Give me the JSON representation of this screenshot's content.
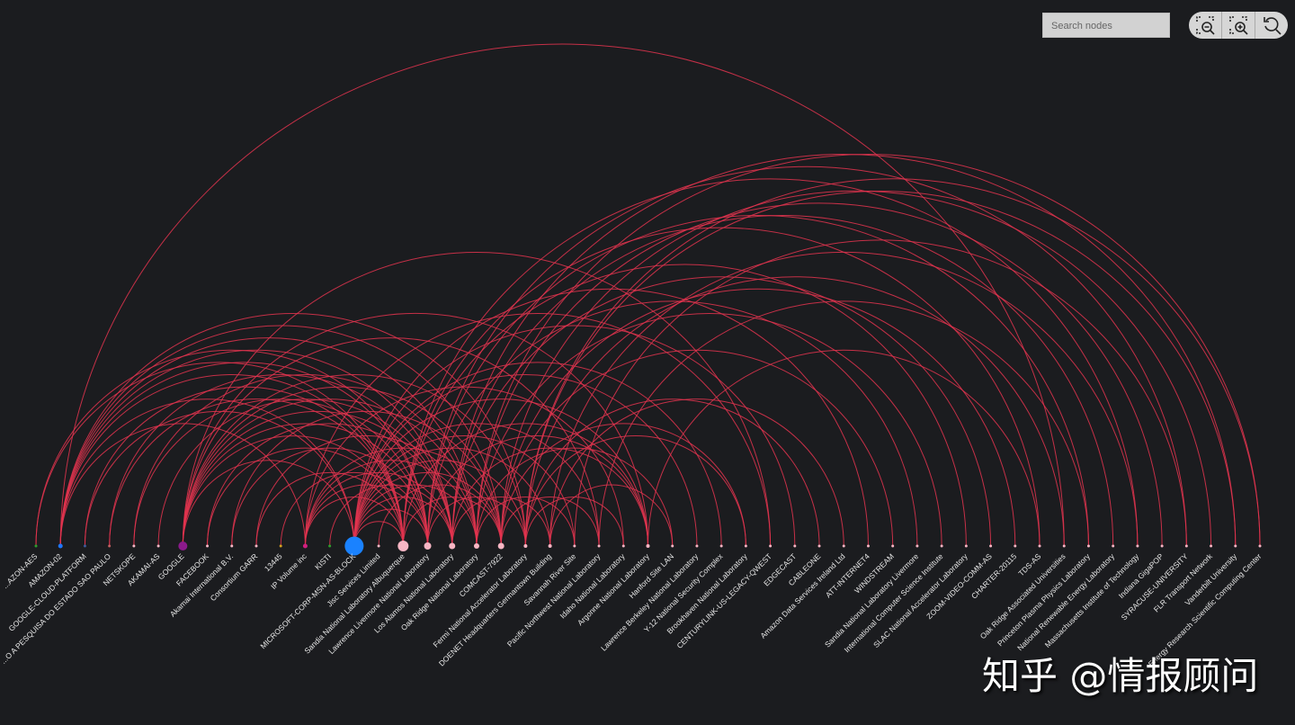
{
  "search_placeholder": "Search nodes",
  "watermark": "知乎 @情报顾问",
  "link_color": "#e3344f",
  "nodes": [
    {
      "label": "...AZON-AES",
      "size": 1.5,
      "color": "#2ca02c"
    },
    {
      "label": "AMAZON-02",
      "size": 2.5,
      "color": "#1f77ff"
    },
    {
      "label": "GOOGLE-CLOUD-PLATFORM",
      "size": 1.5,
      "color": "#3d5a99"
    },
    {
      "label": "...O A PESQUISA DO ESTADO SAO PAULO",
      "size": 1.5,
      "color": "#c06060"
    },
    {
      "label": "NETSKOPE",
      "size": 1.5,
      "color": "#f5b8c6"
    },
    {
      "label": "AKAMAI-AS",
      "size": 1.5,
      "color": "#f5b8c6"
    },
    {
      "label": "GOOGLE",
      "size": 5,
      "color": "#8b1a8b"
    },
    {
      "label": "FACEBOOK",
      "size": 1.5,
      "color": "#f5b8c6"
    },
    {
      "label": "Akamai International B.V.",
      "size": 1.5,
      "color": "#f5b8c6"
    },
    {
      "label": "Consortium GARR",
      "size": 1.5,
      "color": "#f5b8c6"
    },
    {
      "label": "13445",
      "size": 1.5,
      "color": "#d4a020"
    },
    {
      "label": "IP Volume inc",
      "size": 2.5,
      "color": "#d01f7f"
    },
    {
      "label": "KISTI",
      "size": 1.5,
      "color": "#2ca02c"
    },
    {
      "label": "MICROSOFT-CORP-MSN-AS-BLOCK",
      "size": 10.5,
      "color": "#1a82ff"
    },
    {
      "label": "Jisc Services Limited",
      "size": 1.5,
      "color": "#f5b8c6"
    },
    {
      "label": "Sandia National Laboratory Albuquerque",
      "size": 6,
      "color": "#f7b6c4"
    },
    {
      "label": "Lawrence Livermore National Laboratory",
      "size": 4,
      "color": "#f7b6c4"
    },
    {
      "label": "Los Alamos National Laboratory",
      "size": 3.5,
      "color": "#f7b6c4"
    },
    {
      "label": "Oak Ridge National Laboratory",
      "size": 3,
      "color": "#f7b6c4"
    },
    {
      "label": "COMCAST-7922",
      "size": 3.5,
      "color": "#f7b6c4"
    },
    {
      "label": "Fermi National Accelerator Laboratory",
      "size": 2,
      "color": "#f7b6c4"
    },
    {
      "label": "DOENET Headquarters Germantown Building",
      "size": 2,
      "color": "#f7b6c4"
    },
    {
      "label": "Savannah River Site",
      "size": 1.5,
      "color": "#f7b6c4"
    },
    {
      "label": "Pacific Northwest National Laboratory",
      "size": 1.5,
      "color": "#f7b6c4"
    },
    {
      "label": "Idaho National Laboratory",
      "size": 1.5,
      "color": "#f7b6c4"
    },
    {
      "label": "Argonne National Laboratory",
      "size": 2,
      "color": "#f7b6c4"
    },
    {
      "label": "Hanford Site LAN",
      "size": 1.5,
      "color": "#f7b6c4"
    },
    {
      "label": "Lawrence Berkeley National Laboratory",
      "size": 1.5,
      "color": "#f7b6c4"
    },
    {
      "label": "Y-12 National Security Complex",
      "size": 1.5,
      "color": "#f7b6c4"
    },
    {
      "label": "Brookhaven National Laboratory",
      "size": 1.5,
      "color": "#f7b6c4"
    },
    {
      "label": "CENTURYLINK-US-LEGACY-QWEST",
      "size": 1.5,
      "color": "#f7b6c4"
    },
    {
      "label": "EDGECAST",
      "size": 1.5,
      "color": "#f7b6c4"
    },
    {
      "label": "CABLEONE",
      "size": 1.5,
      "color": "#f7b6c4"
    },
    {
      "label": "Amazon Data Services Ireland Ltd",
      "size": 1.5,
      "color": "#f7b6c4"
    },
    {
      "label": "ATT-INTERNET4",
      "size": 1.5,
      "color": "#f7b6c4"
    },
    {
      "label": "WINDSTREAM",
      "size": 1.5,
      "color": "#f7b6c4"
    },
    {
      "label": "Sandia National Laboratory Livermore",
      "size": 1.5,
      "color": "#f7b6c4"
    },
    {
      "label": "International Computer Science Institute",
      "size": 1.5,
      "color": "#f7b6c4"
    },
    {
      "label": "SLAC National Accelerator Laboratory",
      "size": 1.5,
      "color": "#f7b6c4"
    },
    {
      "label": "ZOOM-VIDEO-COMM-AS",
      "size": 1.5,
      "color": "#f7b6c4"
    },
    {
      "label": "CHARTER-20115",
      "size": 1.5,
      "color": "#f7b6c4"
    },
    {
      "label": "TDS-AS",
      "size": 1.5,
      "color": "#f7b6c4"
    },
    {
      "label": "Oak Ridge Associated Universities",
      "size": 1.5,
      "color": "#f7b6c4"
    },
    {
      "label": "Princeton Plasma Physics Laboratory",
      "size": 1.5,
      "color": "#f7b6c4"
    },
    {
      "label": "National Renewable Energy Laboratory",
      "size": 1.5,
      "color": "#f7b6c4"
    },
    {
      "label": "Massachusetts Institute of Technology",
      "size": 1.5,
      "color": "#f7b6c4"
    },
    {
      "label": "Indiana GigaPOP",
      "size": 1.5,
      "color": "#f7b6c4"
    },
    {
      "label": "SYRACUSE-UNIVERSITY",
      "size": 1.5,
      "color": "#f7b6c4"
    },
    {
      "label": "FLR Transport Network",
      "size": 1.5,
      "color": "#f7b6c4"
    },
    {
      "label": "Vanderbilt University",
      "size": 1.5,
      "color": "#f7b6c4"
    },
    {
      "label": "Energy Research Scientific Computing Center",
      "size": 1.5,
      "color": "#f7b6c4"
    }
  ],
  "links": [
    [
      1,
      42
    ],
    [
      1,
      15
    ],
    [
      1,
      16
    ],
    [
      1,
      17
    ],
    [
      1,
      18
    ],
    [
      1,
      19
    ],
    [
      1,
      20
    ],
    [
      1,
      13
    ],
    [
      1,
      11
    ],
    [
      0,
      15
    ],
    [
      0,
      16
    ],
    [
      2,
      13
    ],
    [
      2,
      15
    ],
    [
      3,
      15
    ],
    [
      3,
      17
    ],
    [
      4,
      16
    ],
    [
      4,
      18
    ],
    [
      5,
      17
    ],
    [
      6,
      13
    ],
    [
      6,
      15
    ],
    [
      6,
      16
    ],
    [
      6,
      17
    ],
    [
      6,
      18
    ],
    [
      6,
      19
    ],
    [
      6,
      20
    ],
    [
      6,
      23
    ],
    [
      6,
      25
    ],
    [
      6,
      30
    ],
    [
      7,
      15
    ],
    [
      7,
      17
    ],
    [
      8,
      16
    ],
    [
      8,
      19
    ],
    [
      9,
      15
    ],
    [
      9,
      18
    ],
    [
      10,
      16
    ],
    [
      11,
      15
    ],
    [
      11,
      16
    ],
    [
      11,
      17
    ],
    [
      11,
      18
    ],
    [
      11,
      19
    ],
    [
      11,
      24
    ],
    [
      11,
      30
    ],
    [
      12,
      17
    ],
    [
      13,
      15
    ],
    [
      13,
      16
    ],
    [
      13,
      17
    ],
    [
      13,
      18
    ],
    [
      13,
      19
    ],
    [
      13,
      20
    ],
    [
      13,
      21
    ],
    [
      13,
      22
    ],
    [
      13,
      23
    ],
    [
      13,
      25
    ],
    [
      13,
      27
    ],
    [
      13,
      28
    ],
    [
      13,
      31
    ],
    [
      13,
      34
    ],
    [
      14,
      19
    ],
    [
      15,
      19
    ],
    [
      15,
      38
    ],
    [
      15,
      41
    ],
    [
      15,
      45
    ],
    [
      15,
      25
    ],
    [
      16,
      20
    ],
    [
      16,
      36
    ],
    [
      16,
      43
    ],
    [
      16,
      47
    ],
    [
      16,
      25
    ],
    [
      17,
      21
    ],
    [
      17,
      39
    ],
    [
      17,
      44
    ],
    [
      17,
      49
    ],
    [
      17,
      25
    ],
    [
      18,
      22
    ],
    [
      18,
      37
    ],
    [
      18,
      46
    ],
    [
      18,
      50
    ],
    [
      18,
      26
    ],
    [
      19,
      23
    ],
    [
      19,
      40
    ],
    [
      19,
      48
    ],
    [
      19,
      35
    ],
    [
      19,
      29
    ],
    [
      20,
      24
    ],
    [
      20,
      29
    ],
    [
      20,
      32
    ],
    [
      20,
      42
    ],
    [
      20,
      49
    ],
    [
      20,
      50
    ],
    [
      21,
      26
    ],
    [
      21,
      33
    ],
    [
      21,
      45
    ],
    [
      22,
      47
    ],
    [
      23,
      43
    ],
    [
      25,
      41
    ]
  ]
}
